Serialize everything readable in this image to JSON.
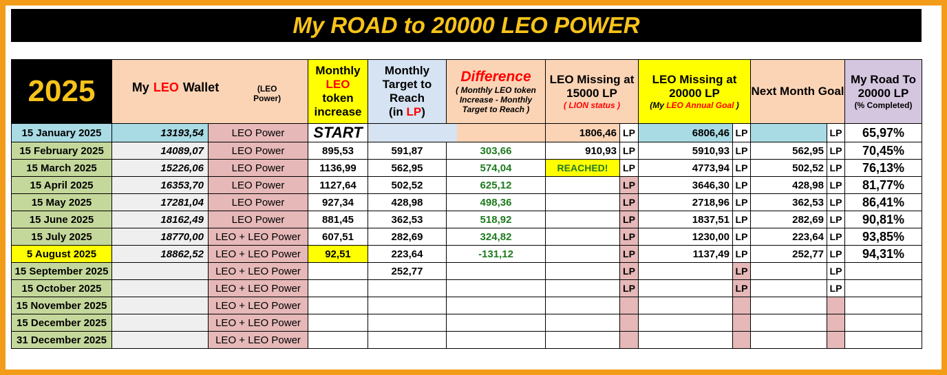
{
  "title": "My ROAD to 20000 LEO POWER",
  "headers": {
    "year": "2025",
    "wallet_a": "My ",
    "wallet_leo": "LEO",
    "wallet_b": " Wallet",
    "wallet_small": "(LEO Power)",
    "monthly_1": "Monthly",
    "monthly_leo": "LEO",
    "monthly_2": "token increase",
    "target_1": "Monthly Target to Reach",
    "target_2": "(in ",
    "target_lp": "LP",
    "target_3": ")",
    "diff_title": "Difference",
    "diff_sub": "( Monthly LEO token Increase - Monthly Target to Reach )",
    "m15_title": "LEO Missing at 15000 LP",
    "m15_sub": "( LION status )",
    "m20_title": "LEO Missing at 20000 LP",
    "m20_sub_a": "(My ",
    "m20_sub_b": "LEO Annual Goal",
    "m20_sub_c": " )",
    "next_title": "Next Month Goal",
    "road_title": "My Road To 20000 LP",
    "road_sub": "(% Completed)"
  },
  "unit": "LP",
  "colors": {
    "frame": "#f39c1a",
    "title_text": "#f7c31a",
    "highlight": "#ffff00",
    "positive": "#1e7a1e",
    "negative": "#1e7a1e",
    "accent_red": "#ff0000"
  },
  "rows": [
    {
      "date": "15 January 2025",
      "wallet": "13193,54",
      "type": "LEO Power",
      "increase": "START",
      "target": "",
      "diff": "",
      "m15": "1806,46",
      "m20": "6806,46",
      "next": "",
      "pct": "65,97%"
    },
    {
      "date": "15 February 2025",
      "wallet": "14089,07",
      "type": "LEO Power",
      "increase": "895,53",
      "target": "591,87",
      "diff": "303,66",
      "m15": "910,93",
      "m20": "5910,93",
      "next": "562,95",
      "pct": "70,45%"
    },
    {
      "date": "15 March 2025",
      "wallet": "15226,06",
      "type": "LEO Power",
      "increase": "1136,99",
      "target": "562,95",
      "diff": "574,04",
      "m15": "REACHED!",
      "m20": "4773,94",
      "next": "502,52",
      "pct": "76,13%"
    },
    {
      "date": "15 April 2025",
      "wallet": "16353,70",
      "type": "LEO Power",
      "increase": "1127,64",
      "target": "502,52",
      "diff": "625,12",
      "m15": "",
      "m20": "3646,30",
      "next": "428,98",
      "pct": "81,77%"
    },
    {
      "date": "15 May 2025",
      "wallet": "17281,04",
      "type": "LEO Power",
      "increase": "927,34",
      "target": "428,98",
      "diff": "498,36",
      "m15": "",
      "m20": "2718,96",
      "next": "362,53",
      "pct": "86,41%"
    },
    {
      "date": "15 June 2025",
      "wallet": "18162,49",
      "type": "LEO Power",
      "increase": "881,45",
      "target": "362,53",
      "diff": "518,92",
      "m15": "",
      "m20": "1837,51",
      "next": "282,69",
      "pct": "90,81%"
    },
    {
      "date": "15 July 2025",
      "wallet": "18770,00",
      "type": "LEO + LEO Power",
      "increase": "607,51",
      "target": "282,69",
      "diff": "324,82",
      "m15": "",
      "m20": "1230,00",
      "next": "223,64",
      "pct": "93,85%"
    },
    {
      "date": "5 August 2025",
      "wallet": "18862,52",
      "type": "LEO + LEO Power",
      "increase": "92,51",
      "target": "223,64",
      "diff": "-131,12",
      "m15": "",
      "m20": "1137,49",
      "next": "252,77",
      "pct": "94,31%"
    },
    {
      "date": "15 September 2025",
      "wallet": "",
      "type": "LEO + LEO Power",
      "increase": "",
      "target": "252,77",
      "diff": "",
      "m15": "",
      "m20": "",
      "next": "",
      "pct": ""
    },
    {
      "date": "15 October 2025",
      "wallet": "",
      "type": "LEO + LEO Power",
      "increase": "",
      "target": "",
      "diff": "",
      "m15": "",
      "m20": "",
      "next": "",
      "pct": ""
    },
    {
      "date": "15 November 2025",
      "wallet": "",
      "type": "LEO + LEO Power",
      "increase": "",
      "target": "",
      "diff": "",
      "m15": "",
      "m20": "",
      "next": "",
      "pct": ""
    },
    {
      "date": "15 December 2025",
      "wallet": "",
      "type": "LEO + LEO Power",
      "increase": "",
      "target": "",
      "diff": "",
      "m15": "",
      "m20": "",
      "next": "",
      "pct": ""
    },
    {
      "date": "31 December 2025",
      "wallet": "",
      "type": "LEO + LEO Power",
      "increase": "",
      "target": "",
      "diff": "",
      "m15": "",
      "m20": "",
      "next": "",
      "pct": ""
    }
  ]
}
